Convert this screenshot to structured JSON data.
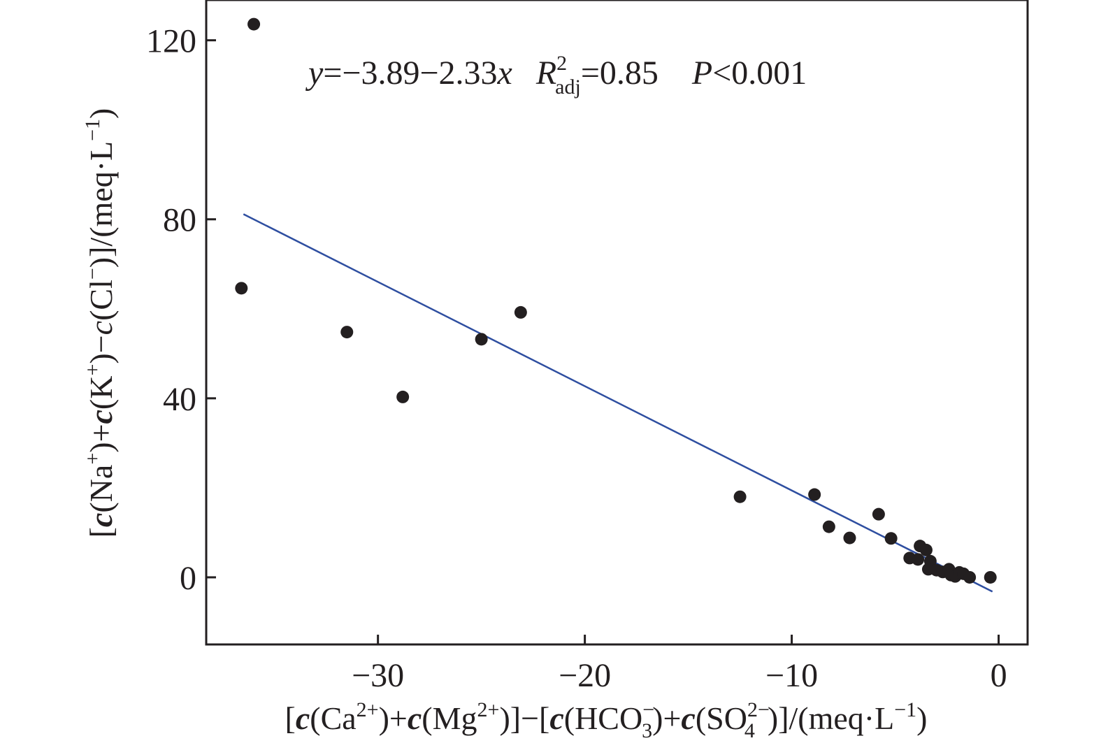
{
  "chart_data": {
    "type": "scatter",
    "xlabel": "[c(Ca2+)+c(Mg2+)]−[c(HCO3−)+c(SO42−)]/(meq·L−1)",
    "ylabel": "[c(Na+)+c(K+)−c(Cl−)]/(meq·L−1)",
    "xlim": [
      -38.3,
      1.4
    ],
    "ylim": [
      -15,
      129
    ],
    "x_ticks": [
      -30,
      -20,
      -10,
      0
    ],
    "x_tick_labels": [
      "−30",
      "−20",
      "−10",
      "0"
    ],
    "y_ticks": [
      0,
      40,
      80,
      120
    ],
    "y_tick_labels": [
      "0",
      "40",
      "80",
      "120"
    ],
    "grid": false,
    "equation": {
      "lhs": "y",
      "rhs": "=−3.89−2.33",
      "x_var": "x",
      "r": "R",
      "r_sup": "2",
      "r_sub": "adj",
      "r_val": "=0.85",
      "p": "P",
      "p_val": "<0.001"
    },
    "fit_line": {
      "intercept": -3.89,
      "slope": -2.33,
      "x_range": [
        -36.5,
        -0.3
      ],
      "color": "#2e4ea0"
    },
    "point_color": "#231f20",
    "points": [
      {
        "x": -36.0,
        "y": 123.6
      },
      {
        "x": -36.6,
        "y": 64.6
      },
      {
        "x": -31.5,
        "y": 54.8
      },
      {
        "x": -28.8,
        "y": 40.3
      },
      {
        "x": -25.0,
        "y": 53.2
      },
      {
        "x": -23.1,
        "y": 59.2
      },
      {
        "x": -12.5,
        "y": 18.0
      },
      {
        "x": -8.9,
        "y": 18.5
      },
      {
        "x": -8.2,
        "y": 11.3
      },
      {
        "x": -7.2,
        "y": 8.8
      },
      {
        "x": -5.8,
        "y": 14.1
      },
      {
        "x": -5.2,
        "y": 8.7
      },
      {
        "x": -4.3,
        "y": 4.3
      },
      {
        "x": -3.9,
        "y": 4.0
      },
      {
        "x": -3.8,
        "y": 7.0
      },
      {
        "x": -3.5,
        "y": 6.1
      },
      {
        "x": -3.3,
        "y": 3.6
      },
      {
        "x": -3.4,
        "y": 1.8
      },
      {
        "x": -3.0,
        "y": 1.6
      },
      {
        "x": -2.7,
        "y": 1.2
      },
      {
        "x": -2.4,
        "y": 1.8
      },
      {
        "x": -2.3,
        "y": 0.5
      },
      {
        "x": -2.1,
        "y": 0.2
      },
      {
        "x": -1.9,
        "y": 1.1
      },
      {
        "x": -1.7,
        "y": 0.8
      },
      {
        "x": -1.4,
        "y": 0.0
      },
      {
        "x": -0.4,
        "y": 0.0
      }
    ]
  }
}
